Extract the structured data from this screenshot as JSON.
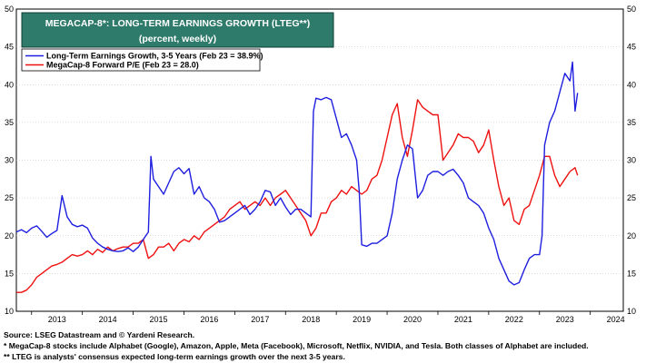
{
  "chart_data": {
    "type": "line",
    "title": "MEGACAP-8*: LONG-TERM EARNINGS GROWTH (LTEG**)",
    "subtitle": "(percent, weekly)",
    "ylim": [
      10,
      50
    ],
    "yticks": [
      10,
      15,
      20,
      25,
      30,
      35,
      40,
      45,
      50
    ],
    "xlim": [
      2012.7,
      2024.65
    ],
    "xticks": [
      "2013",
      "2014",
      "2015",
      "2016",
      "2017",
      "2018",
      "2019",
      "2020",
      "2021",
      "2022",
      "2023",
      "2024"
    ],
    "grid": true,
    "legend_position": "top-left",
    "series": [
      {
        "name": "Long-Term Earnings Growth, 3-5 Years (Feb 23 = 38.9%)",
        "color": "#1f1fe0",
        "x": [
          2012.7,
          2012.8,
          2012.9,
          2013.0,
          2013.1,
          2013.2,
          2013.3,
          2013.4,
          2013.5,
          2013.6,
          2013.7,
          2013.8,
          2013.9,
          2014.0,
          2014.1,
          2014.2,
          2014.3,
          2014.4,
          2014.5,
          2014.6,
          2014.7,
          2014.8,
          2014.9,
          2015.0,
          2015.1,
          2015.2,
          2015.3,
          2015.35,
          2015.4,
          2015.5,
          2015.6,
          2015.7,
          2015.8,
          2015.9,
          2016.0,
          2016.1,
          2016.2,
          2016.3,
          2016.4,
          2016.5,
          2016.6,
          2016.7,
          2016.8,
          2016.9,
          2017.0,
          2017.1,
          2017.2,
          2017.3,
          2017.4,
          2017.5,
          2017.6,
          2017.7,
          2017.8,
          2017.9,
          2018.0,
          2018.1,
          2018.2,
          2018.3,
          2018.4,
          2018.5,
          2018.55,
          2018.6,
          2018.7,
          2018.8,
          2018.9,
          2019.0,
          2019.1,
          2019.2,
          2019.3,
          2019.4,
          2019.45,
          2019.5,
          2019.6,
          2019.7,
          2019.8,
          2019.9,
          2020.0,
          2020.1,
          2020.2,
          2020.3,
          2020.4,
          2020.5,
          2020.6,
          2020.7,
          2020.8,
          2020.9,
          2021.0,
          2021.1,
          2021.2,
          2021.3,
          2021.4,
          2021.5,
          2021.6,
          2021.7,
          2021.8,
          2021.9,
          2022.0,
          2022.1,
          2022.2,
          2022.3,
          2022.4,
          2022.5,
          2022.6,
          2022.7,
          2022.8,
          2022.9,
          2023.0,
          2023.05,
          2023.1,
          2023.2,
          2023.3,
          2023.4,
          2023.5,
          2023.6,
          2023.65,
          2023.7,
          2023.75
        ],
        "values": [
          20.5,
          20.8,
          20.4,
          21.0,
          21.3,
          20.6,
          19.8,
          20.3,
          20.7,
          25.3,
          22.5,
          21.5,
          21.2,
          21.4,
          21.0,
          19.7,
          19.0,
          18.5,
          18.2,
          18.0,
          17.9,
          18.0,
          18.4,
          17.9,
          18.5,
          19.5,
          20.5,
          30.5,
          27.5,
          26.5,
          25.5,
          27.0,
          28.5,
          29.0,
          28.2,
          28.9,
          25.5,
          26.5,
          25.0,
          24.5,
          23.5,
          21.8,
          22.0,
          22.5,
          23.0,
          23.5,
          24.0,
          22.8,
          23.5,
          24.5,
          26.0,
          25.8,
          24.0,
          25.0,
          23.8,
          22.8,
          23.5,
          23.5,
          23.0,
          22.5,
          36.5,
          38.2,
          38.0,
          38.3,
          38.0,
          35.5,
          33.0,
          33.5,
          32.0,
          30.0,
          26.0,
          18.8,
          18.6,
          19.0,
          19.0,
          19.5,
          20.0,
          23.0,
          27.5,
          30.0,
          32.0,
          31.5,
          25.0,
          26.0,
          28.0,
          28.5,
          28.5,
          28.0,
          28.5,
          28.8,
          28.0,
          27.0,
          25.0,
          24.5,
          24.0,
          23.0,
          21.0,
          19.5,
          17.0,
          15.5,
          14.0,
          13.5,
          13.8,
          15.5,
          17.0,
          17.5,
          17.5,
          20.0,
          32.0,
          35.0,
          36.5,
          39.0,
          41.5,
          40.5,
          43.0,
          36.5,
          38.9
        ]
      },
      {
        "name": "MegaCap-8 Forward P/E (Feb 23 = 28.0)",
        "color": "#ee1111",
        "x": [
          2012.7,
          2012.8,
          2012.9,
          2013.0,
          2013.1,
          2013.2,
          2013.3,
          2013.4,
          2013.5,
          2013.6,
          2013.7,
          2013.8,
          2013.9,
          2014.0,
          2014.1,
          2014.2,
          2014.3,
          2014.4,
          2014.5,
          2014.6,
          2014.7,
          2014.8,
          2014.9,
          2015.0,
          2015.1,
          2015.2,
          2015.3,
          2015.4,
          2015.5,
          2015.6,
          2015.7,
          2015.8,
          2015.9,
          2016.0,
          2016.1,
          2016.2,
          2016.3,
          2016.4,
          2016.5,
          2016.6,
          2016.7,
          2016.8,
          2016.9,
          2017.0,
          2017.1,
          2017.2,
          2017.3,
          2017.4,
          2017.5,
          2017.6,
          2017.7,
          2017.8,
          2017.9,
          2018.0,
          2018.1,
          2018.2,
          2018.3,
          2018.4,
          2018.5,
          2018.6,
          2018.7,
          2018.8,
          2018.9,
          2019.0,
          2019.1,
          2019.2,
          2019.3,
          2019.4,
          2019.5,
          2019.6,
          2019.7,
          2019.8,
          2019.9,
          2020.0,
          2020.1,
          2020.2,
          2020.3,
          2020.4,
          2020.5,
          2020.6,
          2020.7,
          2020.8,
          2020.9,
          2021.0,
          2021.1,
          2021.2,
          2021.3,
          2021.4,
          2021.5,
          2021.6,
          2021.7,
          2021.8,
          2021.9,
          2022.0,
          2022.1,
          2022.2,
          2022.3,
          2022.4,
          2022.5,
          2022.6,
          2022.7,
          2022.8,
          2022.9,
          2023.0,
          2023.1,
          2023.2,
          2023.3,
          2023.4,
          2023.5,
          2023.6,
          2023.7,
          2023.75
        ],
        "values": [
          12.5,
          12.5,
          12.8,
          13.5,
          14.5,
          15.0,
          15.5,
          16.0,
          16.2,
          16.5,
          17.0,
          17.5,
          17.3,
          17.5,
          18.0,
          17.5,
          18.2,
          17.8,
          18.5,
          18.0,
          18.3,
          18.5,
          18.5,
          19.0,
          19.0,
          19.5,
          17.0,
          17.5,
          18.5,
          18.5,
          19.0,
          18.0,
          19.0,
          19.5,
          19.2,
          20.0,
          19.5,
          20.5,
          21.0,
          21.5,
          22.0,
          22.5,
          23.5,
          24.0,
          24.5,
          23.5,
          24.0,
          24.5,
          24.0,
          25.0,
          24.0,
          25.0,
          25.5,
          26.0,
          25.0,
          24.0,
          23.0,
          22.0,
          20.0,
          21.0,
          23.0,
          23.0,
          24.5,
          25.0,
          26.0,
          25.5,
          26.5,
          26.0,
          25.5,
          26.0,
          27.5,
          28.0,
          30.0,
          33.0,
          36.0,
          37.5,
          33.0,
          30.5,
          34.0,
          38.0,
          37.0,
          36.5,
          36.0,
          36.0,
          30.0,
          31.0,
          32.0,
          33.5,
          33.0,
          33.0,
          32.5,
          31.0,
          32.0,
          34.0,
          30.0,
          26.5,
          24.0,
          25.0,
          22.0,
          21.5,
          23.5,
          24.0,
          26.0,
          28.0,
          30.5,
          30.5,
          28.0,
          26.5,
          27.5,
          28.5,
          29.0,
          28.0
        ]
      }
    ]
  },
  "footer": {
    "source": "Source: LSEG Datastream and © Yardeni Research.",
    "note1": "* MegaCap-8 stocks include Alphabet (Google), Amazon, Apple, Meta (Facebook), Microsoft, Netflix, NVIDIA, and Tesla. Both classes of Alphabet are included.",
    "note2": "** LTEG is analysts' consensus expected long-term earnings growth over the next 3-5 years."
  },
  "colors": {
    "title_bg": "#2f7b6b",
    "grid": "#bbbbbb"
  }
}
